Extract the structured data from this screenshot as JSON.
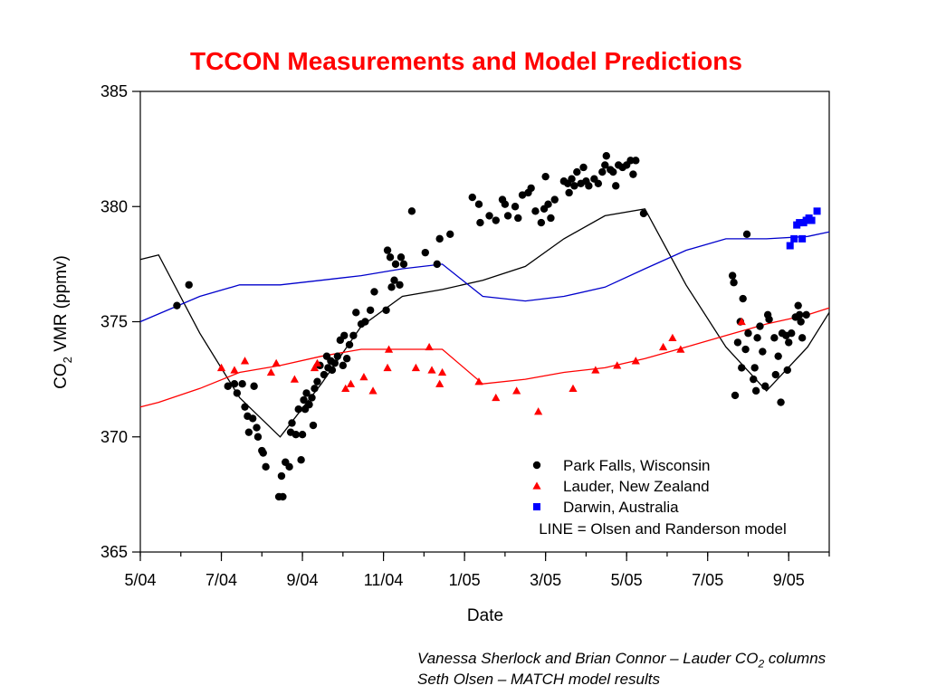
{
  "colors": {
    "title": "#ff0000",
    "park_falls": "#000000",
    "lauder": "#ff0000",
    "darwin": "#0000ff",
    "model_park_falls": "#000000",
    "model_lauder": "#ff0000",
    "model_darwin": "#0000cc"
  },
  "credits": {
    "line1_pre": "Vanessa Sherlock and Brian Connor – Lauder CO",
    "line1_sub": "2",
    "line1_post": " columns",
    "line2": "Seth Olsen – MATCH model results"
  },
  "chart_data": {
    "type": "scatter",
    "title": "TCCON Measurements and Model Predictions",
    "xlabel": "Date",
    "ylabel_main": "CO",
    "ylabel_sub": "2",
    "ylabel_rest": " VMR (ppmv)",
    "x_unit": "month, decimal, 2004-05 = 2004.33 (date axis)",
    "xlim": [
      "2004-05-01",
      "2005-10-01"
    ],
    "ylim": [
      365,
      385
    ],
    "x_ticks": [
      {
        "label": "5/04",
        "date": "2004-05-01"
      },
      {
        "label": "7/04",
        "date": "2004-07-01"
      },
      {
        "label": "9/04",
        "date": "2004-09-01"
      },
      {
        "label": "11/04",
        "date": "2004-11-01"
      },
      {
        "label": "1/05",
        "date": "2005-01-01"
      },
      {
        "label": "3/05",
        "date": "2005-03-01"
      },
      {
        "label": "5/05",
        "date": "2005-05-01"
      },
      {
        "label": "7/05",
        "date": "2005-07-01"
      },
      {
        "label": "9/05",
        "date": "2005-09-01"
      }
    ],
    "y_ticks": [
      365,
      370,
      375,
      380,
      385
    ],
    "grid": false,
    "legend_position": "bottom-right",
    "legend": [
      {
        "label": "Park Falls, Wisconsin",
        "marker": "circle",
        "series": "park_falls"
      },
      {
        "label": "Lauder, New Zealand",
        "marker": "triangle",
        "series": "lauder"
      },
      {
        "label": "Darwin, Australia",
        "marker": "square",
        "series": "darwin"
      }
    ],
    "legend_line_note": "LINE = Olsen and Randerson model",
    "series": [
      {
        "key": "park_falls",
        "name": "Park Falls, Wisconsin",
        "marker": "circle",
        "points": [
          [
            "2004-05-29",
            375.7
          ],
          [
            "2004-06-07",
            376.6
          ],
          [
            "2004-07-06",
            372.2
          ],
          [
            "2004-07-11",
            372.3
          ],
          [
            "2004-07-13",
            371.9
          ],
          [
            "2004-07-17",
            372.3
          ],
          [
            "2004-07-19",
            371.3
          ],
          [
            "2004-07-21",
            370.9
          ],
          [
            "2004-07-22",
            370.2
          ],
          [
            "2004-07-25",
            370.8
          ],
          [
            "2004-07-26",
            372.2
          ],
          [
            "2004-07-28",
            370.4
          ],
          [
            "2004-07-29",
            370.0
          ],
          [
            "2004-08-01",
            369.4
          ],
          [
            "2004-08-02",
            369.3
          ],
          [
            "2004-08-04",
            368.7
          ],
          [
            "2004-08-14",
            367.4
          ],
          [
            "2004-08-16",
            368.3
          ],
          [
            "2004-08-17",
            367.4
          ],
          [
            "2004-08-19",
            368.9
          ],
          [
            "2004-08-22",
            368.7
          ],
          [
            "2004-08-23",
            370.2
          ],
          [
            "2004-08-24",
            370.6
          ],
          [
            "2004-08-27",
            370.1
          ],
          [
            "2004-08-29",
            371.2
          ],
          [
            "2004-08-31",
            369.0
          ],
          [
            "2004-09-01",
            370.1
          ],
          [
            "2004-09-02",
            371.6
          ],
          [
            "2004-09-03",
            371.2
          ],
          [
            "2004-09-04",
            371.9
          ],
          [
            "2004-09-06",
            371.4
          ],
          [
            "2004-09-08",
            371.7
          ],
          [
            "2004-09-09",
            370.5
          ],
          [
            "2004-09-10",
            372.1
          ],
          [
            "2004-09-12",
            372.4
          ],
          [
            "2004-09-14",
            373.1
          ],
          [
            "2004-09-17",
            372.7
          ],
          [
            "2004-09-19",
            373.5
          ],
          [
            "2004-09-20",
            373.0
          ],
          [
            "2004-09-22",
            373.3
          ],
          [
            "2004-09-23",
            372.9
          ],
          [
            "2004-09-25",
            373.2
          ],
          [
            "2004-09-27",
            373.5
          ],
          [
            "2004-09-29",
            374.2
          ],
          [
            "2004-10-01",
            373.1
          ],
          [
            "2004-10-02",
            374.4
          ],
          [
            "2004-10-04",
            373.4
          ],
          [
            "2004-10-06",
            374.0
          ],
          [
            "2004-10-09",
            374.4
          ],
          [
            "2004-10-11",
            375.4
          ],
          [
            "2004-10-15",
            374.9
          ],
          [
            "2004-10-18",
            375.0
          ],
          [
            "2004-10-22",
            375.5
          ],
          [
            "2004-10-25",
            376.3
          ],
          [
            "2004-11-03",
            375.5
          ],
          [
            "2004-11-04",
            378.1
          ],
          [
            "2004-11-06",
            377.8
          ],
          [
            "2004-11-07",
            376.5
          ],
          [
            "2004-11-09",
            376.8
          ],
          [
            "2004-11-10",
            377.5
          ],
          [
            "2004-11-13",
            376.6
          ],
          [
            "2004-11-14",
            377.8
          ],
          [
            "2004-11-16",
            377.5
          ],
          [
            "2004-11-22",
            379.8
          ],
          [
            "2004-12-02",
            378.0
          ],
          [
            "2004-12-11",
            377.5
          ],
          [
            "2004-12-13",
            378.6
          ],
          [
            "2004-12-21",
            378.8
          ],
          [
            "2005-01-07",
            380.4
          ],
          [
            "2005-01-12",
            380.1
          ],
          [
            "2005-01-13",
            379.3
          ],
          [
            "2005-01-20",
            379.6
          ],
          [
            "2005-01-25",
            379.4
          ],
          [
            "2005-01-30",
            380.3
          ],
          [
            "2005-02-01",
            380.1
          ],
          [
            "2005-02-03",
            379.6
          ],
          [
            "2005-02-08",
            380.0
          ],
          [
            "2005-02-10",
            379.5
          ],
          [
            "2005-02-13",
            380.5
          ],
          [
            "2005-02-17",
            380.6
          ],
          [
            "2005-02-19",
            380.8
          ],
          [
            "2005-02-22",
            379.8
          ],
          [
            "2005-02-26",
            379.3
          ],
          [
            "2005-02-28",
            379.9
          ],
          [
            "2005-03-03",
            380.1
          ],
          [
            "2005-03-05",
            379.5
          ],
          [
            "2005-03-01",
            381.3
          ],
          [
            "2005-03-08",
            380.3
          ],
          [
            "2005-03-15",
            381.1
          ],
          [
            "2005-03-18",
            381.0
          ],
          [
            "2005-03-19",
            380.6
          ],
          [
            "2005-03-21",
            381.2
          ],
          [
            "2005-03-23",
            380.9
          ],
          [
            "2005-03-25",
            381.5
          ],
          [
            "2005-03-28",
            381.0
          ],
          [
            "2005-03-30",
            381.7
          ],
          [
            "2005-04-01",
            381.1
          ],
          [
            "2005-04-03",
            380.9
          ],
          [
            "2005-04-07",
            381.2
          ],
          [
            "2005-04-10",
            381.0
          ],
          [
            "2005-04-13",
            381.5
          ],
          [
            "2005-04-15",
            381.8
          ],
          [
            "2005-04-16",
            382.2
          ],
          [
            "2005-04-19",
            381.6
          ],
          [
            "2005-04-21",
            381.5
          ],
          [
            "2005-04-23",
            380.9
          ],
          [
            "2005-04-25",
            381.8
          ],
          [
            "2005-04-28",
            381.7
          ],
          [
            "2005-05-01",
            381.8
          ],
          [
            "2005-05-04",
            382.0
          ],
          [
            "2005-05-06",
            381.4
          ],
          [
            "2005-05-08",
            382.0
          ],
          [
            "2005-05-14",
            379.7
          ],
          [
            "2005-07-20",
            377.0
          ],
          [
            "2005-07-21",
            376.7
          ],
          [
            "2005-07-22",
            371.8
          ],
          [
            "2005-07-24",
            374.1
          ],
          [
            "2005-07-26",
            375.0
          ],
          [
            "2005-07-27",
            373.0
          ],
          [
            "2005-07-28",
            376.0
          ],
          [
            "2005-07-30",
            373.8
          ],
          [
            "2005-08-01",
            374.5
          ],
          [
            "2005-07-31",
            378.8
          ],
          [
            "2005-08-05",
            372.5
          ],
          [
            "2005-08-06",
            373.0
          ],
          [
            "2005-08-07",
            372.0
          ],
          [
            "2005-08-08",
            374.3
          ],
          [
            "2005-08-10",
            374.8
          ],
          [
            "2005-08-12",
            373.7
          ],
          [
            "2005-08-14",
            372.2
          ],
          [
            "2005-08-16",
            375.3
          ],
          [
            "2005-08-17",
            375.1
          ],
          [
            "2005-08-21",
            374.3
          ],
          [
            "2005-08-22",
            372.7
          ],
          [
            "2005-08-24",
            373.5
          ],
          [
            "2005-08-26",
            371.5
          ],
          [
            "2005-08-27",
            374.5
          ],
          [
            "2005-08-30",
            374.4
          ],
          [
            "2005-08-31",
            372.9
          ],
          [
            "2005-09-01",
            374.1
          ],
          [
            "2005-09-03",
            374.5
          ],
          [
            "2005-09-06",
            375.2
          ],
          [
            "2005-09-08",
            375.7
          ],
          [
            "2005-09-09",
            375.3
          ],
          [
            "2005-09-10",
            375.0
          ],
          [
            "2005-09-11",
            374.3
          ],
          [
            "2005-09-14",
            375.3
          ]
        ]
      },
      {
        "key": "lauder",
        "name": "Lauder, New Zealand",
        "marker": "triangle",
        "points": [
          [
            "2004-07-01",
            373.0
          ],
          [
            "2004-07-11",
            372.9
          ],
          [
            "2004-07-19",
            373.3
          ],
          [
            "2004-08-08",
            372.8
          ],
          [
            "2004-08-12",
            373.2
          ],
          [
            "2004-08-26",
            372.5
          ],
          [
            "2004-09-10",
            373.0
          ],
          [
            "2004-09-12",
            373.2
          ],
          [
            "2004-10-03",
            372.1
          ],
          [
            "2004-10-07",
            372.3
          ],
          [
            "2004-10-17",
            372.6
          ],
          [
            "2004-10-24",
            372.0
          ],
          [
            "2004-11-04",
            373.0
          ],
          [
            "2004-11-05",
            373.8
          ],
          [
            "2004-11-25",
            373.0
          ],
          [
            "2004-12-05",
            373.9
          ],
          [
            "2004-12-07",
            372.9
          ],
          [
            "2004-12-13",
            372.3
          ],
          [
            "2004-12-15",
            372.8
          ],
          [
            "2005-01-12",
            372.4
          ],
          [
            "2005-01-25",
            371.7
          ],
          [
            "2005-02-09",
            372.0
          ],
          [
            "2005-02-24",
            371.1
          ],
          [
            "2005-03-22",
            372.1
          ],
          [
            "2005-04-08",
            372.9
          ],
          [
            "2005-04-24",
            373.1
          ],
          [
            "2005-05-08",
            373.3
          ],
          [
            "2005-05-29",
            373.9
          ],
          [
            "2005-06-05",
            374.3
          ],
          [
            "2005-06-11",
            373.8
          ],
          [
            "2005-07-27",
            375.0
          ]
        ]
      },
      {
        "key": "darwin",
        "name": "Darwin, Australia",
        "marker": "square",
        "points": [
          [
            "2005-09-02",
            378.3
          ],
          [
            "2005-09-05",
            378.6
          ],
          [
            "2005-09-07",
            379.2
          ],
          [
            "2005-09-09",
            379.3
          ],
          [
            "2005-09-11",
            378.6
          ],
          [
            "2005-09-12",
            379.3
          ],
          [
            "2005-09-14",
            379.4
          ],
          [
            "2005-09-16",
            379.5
          ],
          [
            "2005-09-18",
            379.4
          ],
          [
            "2005-09-22",
            379.8
          ]
        ]
      }
    ],
    "model_lines": [
      {
        "key": "model_park_falls",
        "name": "LINE = Olsen and Randerson model",
        "points": [
          [
            "2004-05-01",
            377.7
          ],
          [
            "2004-05-15",
            377.9
          ],
          [
            "2004-06-15",
            374.5
          ],
          [
            "2004-07-15",
            371.7
          ],
          [
            "2004-08-15",
            370.0
          ],
          [
            "2004-09-15",
            372.3
          ],
          [
            "2004-10-15",
            374.8
          ],
          [
            "2004-11-15",
            376.1
          ],
          [
            "2004-12-15",
            376.4
          ],
          [
            "2005-01-15",
            376.8
          ],
          [
            "2005-02-15",
            377.4
          ],
          [
            "2005-03-15",
            378.6
          ],
          [
            "2005-04-15",
            379.6
          ],
          [
            "2005-05-15",
            379.9
          ],
          [
            "2005-06-15",
            376.6
          ],
          [
            "2005-07-15",
            373.9
          ],
          [
            "2005-08-15",
            372.0
          ],
          [
            "2005-09-15",
            373.9
          ],
          [
            "2005-10-01",
            375.4
          ]
        ]
      },
      {
        "key": "model_lauder",
        "name": "LINE = Olsen and Randerson model",
        "points": [
          [
            "2004-05-01",
            371.3
          ],
          [
            "2004-05-15",
            371.5
          ],
          [
            "2004-06-15",
            372.1
          ],
          [
            "2004-07-15",
            372.8
          ],
          [
            "2004-08-15",
            373.1
          ],
          [
            "2004-09-15",
            373.5
          ],
          [
            "2004-10-15",
            373.8
          ],
          [
            "2004-11-15",
            373.8
          ],
          [
            "2004-12-15",
            373.8
          ],
          [
            "2005-01-15",
            372.3
          ],
          [
            "2005-02-15",
            372.5
          ],
          [
            "2005-03-15",
            372.8
          ],
          [
            "2005-04-15",
            373.0
          ],
          [
            "2005-05-15",
            373.4
          ],
          [
            "2005-06-15",
            373.9
          ],
          [
            "2005-07-15",
            374.4
          ],
          [
            "2005-08-15",
            374.9
          ],
          [
            "2005-09-15",
            375.3
          ],
          [
            "2005-10-01",
            375.6
          ]
        ]
      },
      {
        "key": "model_darwin",
        "name": "LINE = Olsen and Randerson model",
        "points": [
          [
            "2004-05-01",
            375.0
          ],
          [
            "2004-06-15",
            376.1
          ],
          [
            "2004-07-15",
            376.6
          ],
          [
            "2004-08-15",
            376.6
          ],
          [
            "2004-09-15",
            376.8
          ],
          [
            "2004-10-15",
            377.0
          ],
          [
            "2004-11-15",
            377.3
          ],
          [
            "2004-12-15",
            377.5
          ],
          [
            "2005-01-15",
            376.1
          ],
          [
            "2005-02-15",
            375.9
          ],
          [
            "2005-03-15",
            376.1
          ],
          [
            "2005-04-15",
            376.5
          ],
          [
            "2005-05-15",
            377.3
          ],
          [
            "2005-06-15",
            378.1
          ],
          [
            "2005-07-15",
            378.6
          ],
          [
            "2005-08-15",
            378.6
          ],
          [
            "2005-09-15",
            378.7
          ],
          [
            "2005-10-01",
            378.9
          ]
        ]
      }
    ]
  }
}
